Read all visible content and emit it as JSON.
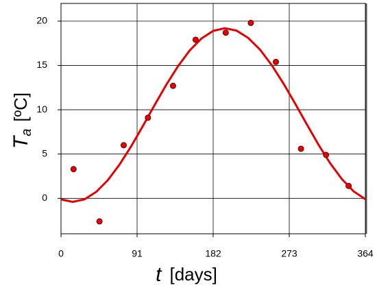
{
  "chart_data": {
    "type": "scatter",
    "xlabel": {
      "symbol": "t",
      "unit": "[days]"
    },
    "ylabel": {
      "symbol": "T",
      "subscript": "a",
      "unit": "[ºC]"
    },
    "xlim": [
      0,
      364
    ],
    "xticks": [
      0,
      91,
      182,
      273,
      364
    ],
    "ylim": [
      -4,
      22
    ],
    "yticks": [
      0,
      5,
      10,
      15,
      20
    ],
    "grid": true,
    "series": [
      {
        "type": "scatter",
        "color": "#e60000",
        "x": [
          15,
          46,
          75,
          104,
          134,
          161,
          197,
          227,
          257,
          287,
          317,
          344
        ],
        "values": [
          3.3,
          -2.6,
          6.0,
          9.1,
          12.7,
          17.9,
          18.7,
          19.8,
          15.4,
          5.6,
          4.9,
          1.4
        ]
      },
      {
        "type": "line",
        "color": "#e60000",
        "x": [
          0,
          14,
          28,
          42,
          56,
          70,
          84,
          98,
          112,
          126,
          140,
          154,
          168,
          182,
          196,
          210,
          224,
          238,
          252,
          266,
          280,
          294,
          308,
          322,
          336,
          350,
          364
        ],
        "values": [
          -0.12,
          -0.4,
          -0.12,
          0.72,
          2.05,
          3.81,
          5.89,
          8.18,
          10.54,
          12.83,
          14.92,
          16.7,
          18.04,
          18.9,
          19.2,
          18.93,
          18.1,
          16.79,
          15.04,
          12.97,
          10.7,
          8.35,
          6.05,
          3.95,
          2.17,
          0.79,
          -0.1
        ]
      }
    ]
  }
}
